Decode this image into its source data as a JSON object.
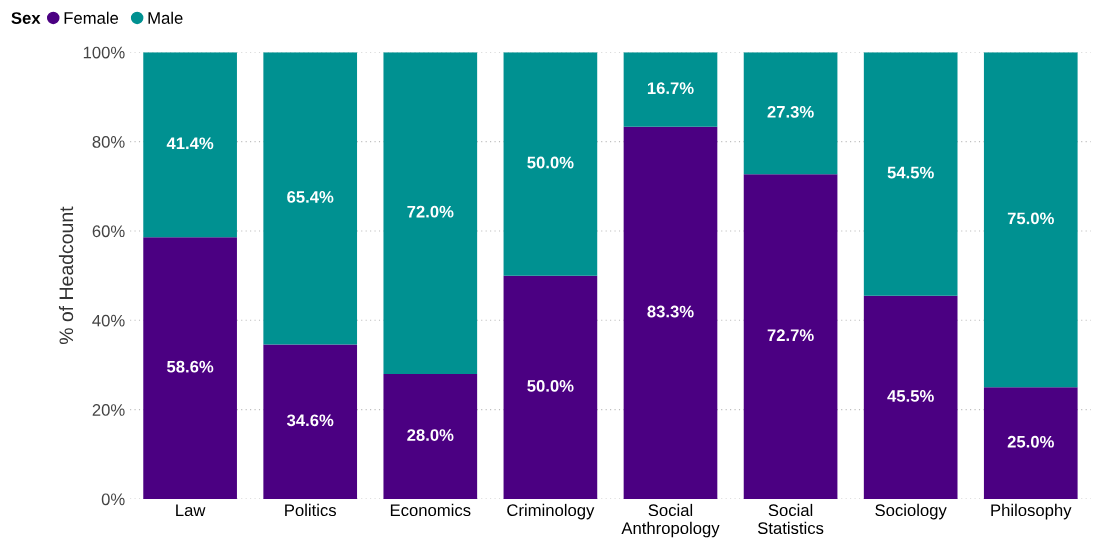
{
  "chart_data": {
    "type": "bar",
    "stacked": true,
    "ylabel": "% of Headcount",
    "legend_title": "Sex",
    "legend": "top left",
    "categories": [
      "Law",
      "Politics",
      "Economics",
      "Criminology",
      "Social\nAnthropology",
      "Social\nStatistics",
      "Sociology",
      "Philosophy"
    ],
    "series": [
      {
        "name": "Female",
        "color": "#4b0082",
        "values": [
          58.6,
          34.6,
          28.0,
          50.0,
          83.3,
          72.7,
          45.5,
          25.0
        ],
        "value_labels": [
          "58.6%",
          "34.6%",
          "28.0%",
          "50.0%",
          "83.3%",
          "72.7%",
          "45.5%",
          "25.0%"
        ]
      },
      {
        "name": "Male",
        "color": "#009191",
        "values": [
          41.4,
          65.4,
          72.0,
          50.0,
          16.7,
          27.3,
          54.5,
          75.0
        ],
        "value_labels": [
          "41.4%",
          "65.4%",
          "72.0%",
          "50.0%",
          "16.7%",
          "27.3%",
          "54.5%",
          "75.0%"
        ]
      }
    ],
    "ylim": [
      0,
      100
    ],
    "yticks": [
      {
        "value": 0,
        "label": "0%"
      },
      {
        "value": 20,
        "label": "20%"
      },
      {
        "value": 40,
        "label": "40%"
      },
      {
        "value": 60,
        "label": "60%"
      },
      {
        "value": 80,
        "label": "80%"
      },
      {
        "value": 100,
        "label": "100%"
      }
    ],
    "grid": "y"
  }
}
